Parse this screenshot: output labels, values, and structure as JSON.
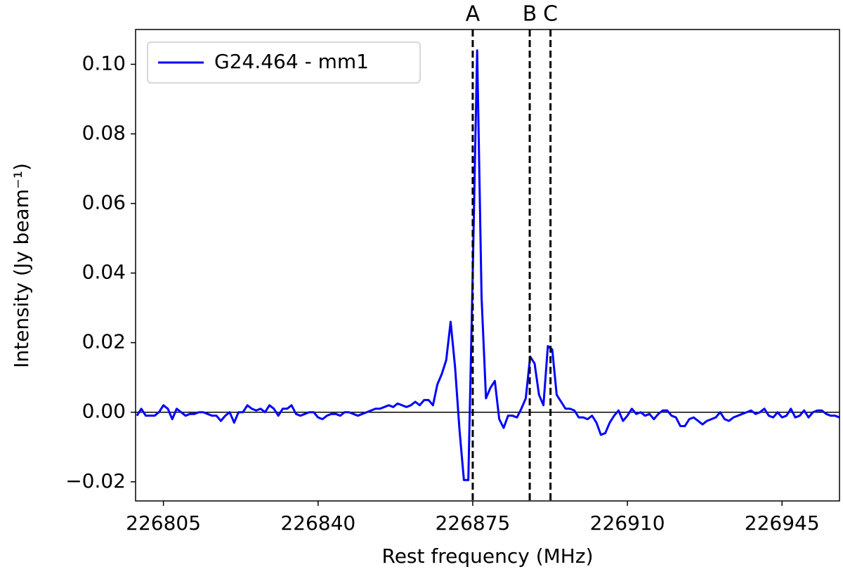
{
  "chart_data": {
    "type": "line",
    "xlabel": "Rest frequency (MHz)",
    "ylabel": "Intensity (Jy beam⁻¹)",
    "x": [
      226799,
      226800,
      226801,
      226802,
      226803,
      226804,
      226805,
      226806,
      226807,
      226808,
      226809,
      226810,
      226811,
      226812,
      226813,
      226814,
      226815,
      226816,
      226817,
      226818,
      226819,
      226820,
      226821,
      226822,
      226823,
      226824,
      226825,
      226826,
      226827,
      226828,
      226829,
      226830,
      226831,
      226832,
      226833,
      226834,
      226835,
      226836,
      226837,
      226838,
      226839,
      226840,
      226841,
      226842,
      226843,
      226844,
      226845,
      226846,
      226847,
      226848,
      226849,
      226850,
      226851,
      226852,
      226853,
      226854,
      226855,
      226856,
      226857,
      226858,
      226859,
      226860,
      226861,
      226862,
      226863,
      226864,
      226865,
      226866,
      226867,
      226868,
      226869,
      226870,
      226871,
      226872,
      226873,
      226874,
      226875,
      226876,
      226877,
      226878,
      226879,
      226880,
      226881,
      226882,
      226883,
      226884,
      226885,
      226886,
      226887,
      226888,
      226889,
      226890,
      226891,
      226892,
      226893,
      226894,
      226895,
      226896,
      226897,
      226898,
      226899,
      226900,
      226901,
      226902,
      226903,
      226904,
      226905,
      226906,
      226907,
      226908,
      226909,
      226910,
      226911,
      226912,
      226913,
      226914,
      226915,
      226916,
      226917,
      226918,
      226919,
      226920,
      226921,
      226922,
      226923,
      226924,
      226925,
      226926,
      226927,
      226928,
      226929,
      226930,
      226931,
      226932,
      226933,
      226934,
      226935,
      226936,
      226937,
      226938,
      226939,
      226940,
      226941,
      226942,
      226943,
      226944,
      226945,
      226946,
      226947,
      226948,
      226949,
      226950,
      226951,
      226952,
      226953,
      226954,
      226955,
      226956,
      226957,
      226958
    ],
    "series": [
      {
        "name": "G24.464 - mm1",
        "color": "#0000ff",
        "values": [
          -0.001,
          0.001,
          -0.001,
          -0.001,
          -0.001,
          0.0,
          0.002,
          0.001,
          -0.002,
          0.001,
          0.0,
          -0.001,
          -0.0005,
          -0.0005,
          0.0,
          0.0,
          -0.0005,
          -0.001,
          -0.001,
          -0.0025,
          -0.001,
          0.0,
          -0.003,
          0.0,
          0.0,
          0.002,
          0.001,
          0.0005,
          0.001,
          0.0,
          0.002,
          0.001,
          -0.001,
          0.001,
          0.001,
          0.002,
          -0.0005,
          -0.001,
          -0.0005,
          0.0,
          0.0,
          -0.0015,
          -0.002,
          -0.001,
          -0.0005,
          -0.0005,
          -0.001,
          0.0,
          0.0,
          -0.0005,
          -0.001,
          -0.0005,
          0.0,
          0.0005,
          0.001,
          0.001,
          0.0015,
          0.002,
          0.0015,
          0.0025,
          0.002,
          0.0015,
          0.002,
          0.003,
          0.002,
          0.0035,
          0.0035,
          0.002,
          0.008,
          0.011,
          0.015,
          0.026,
          0.013,
          -0.005,
          -0.0195,
          -0.0195,
          0.04,
          0.104,
          0.033,
          0.004,
          0.007,
          0.009,
          -0.002,
          -0.0045,
          -0.001,
          -0.001,
          -0.0015,
          0.001,
          0.004,
          0.016,
          0.014,
          0.005,
          0.002,
          0.019,
          0.018,
          0.005,
          0.003,
          0.001,
          0.001,
          0.0005,
          -0.0015,
          -0.0015,
          -0.002,
          -0.001,
          -0.003,
          -0.0065,
          -0.006,
          -0.003,
          -0.001,
          0.0005,
          -0.0025,
          -0.001,
          0.001,
          -0.0005,
          0.0,
          -0.001,
          -0.0005,
          -0.002,
          -0.0005,
          0.0005,
          0.0005,
          -0.001,
          -0.0015,
          -0.004,
          -0.004,
          -0.002,
          -0.0015,
          -0.0025,
          -0.0035,
          -0.0025,
          -0.002,
          -0.0015,
          0.0,
          -0.002,
          -0.0025,
          -0.0015,
          -0.001,
          -0.0005,
          0.0,
          0.0005,
          -0.0005,
          0.0,
          0.001,
          -0.001,
          -0.0015,
          0.0,
          -0.0015,
          -0.001,
          0.001,
          -0.0015,
          -0.001,
          0.0005,
          -0.0015,
          0.0,
          0.0005,
          0.0005,
          -0.0005,
          -0.001,
          -0.001,
          -0.0015
        ]
      }
    ],
    "xlim": [
      226798.7,
      226958
    ],
    "xticks": [
      226805,
      226840,
      226875,
      226910,
      226945
    ],
    "ylim": [
      -0.0255,
      0.11
    ],
    "yticks": [
      {
        "value": -0.02,
        "label": "−0.02"
      },
      {
        "value": 0,
        "label": "0.00"
      },
      {
        "value": 0.02,
        "label": "0.02"
      },
      {
        "value": 0.04,
        "label": "0.04"
      },
      {
        "value": 0.06,
        "label": "0.06"
      },
      {
        "value": 0.08,
        "label": "0.08"
      },
      {
        "value": 0.1,
        "label": "0.10"
      }
    ],
    "hline": 0,
    "vlines": [
      {
        "label": "A",
        "x": 226875
      },
      {
        "label": "B",
        "x": 226887.9
      },
      {
        "label": "C",
        "x": 226892.6
      }
    ],
    "legend": "upper left",
    "grid": false
  }
}
